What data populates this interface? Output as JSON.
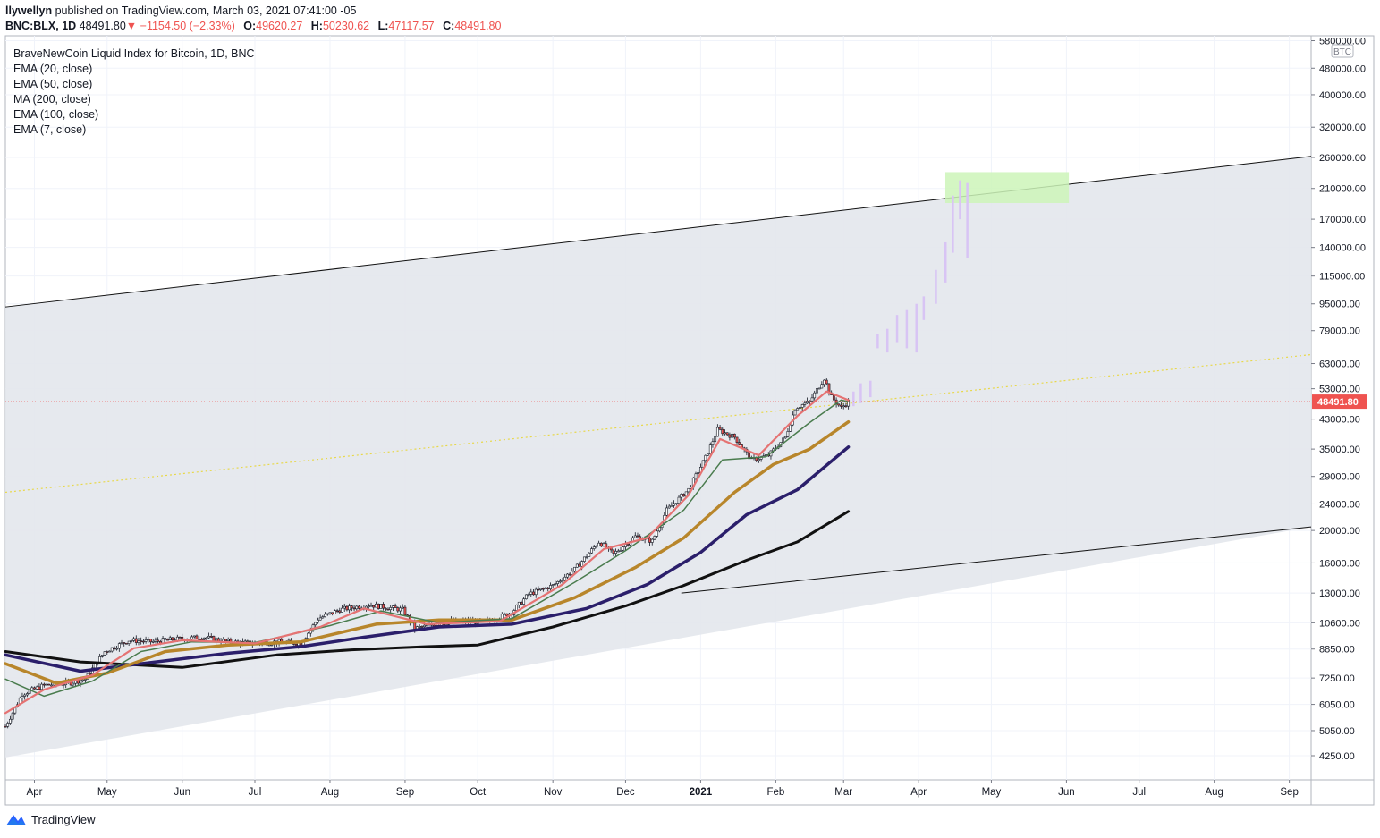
{
  "header": {
    "user": "llywellyn",
    "published": "published on TradingView.com, March 03, 2021 07:41:00 -05",
    "symbol": "BNC:BLX, 1D",
    "last": "48491.80",
    "arrow": "▼",
    "change": "−1154.50 (−2.33%)",
    "o_label": "O:",
    "o": "49620.27",
    "h_label": "H:",
    "h": "50230.62",
    "l_label": "L:",
    "l": "47117.57",
    "c_label": "C:",
    "c": "48491.80"
  },
  "legend": {
    "title": "BraveNewCoin Liquid Index for Bitcoin, 1D, BNC",
    "studies": [
      "EMA (20, close)",
      "EMA (50, close)",
      "MA (200, close)",
      "EMA (100, close)",
      "EMA (7, close)"
    ]
  },
  "footer": {
    "brand": "TradingView"
  },
  "colors": {
    "channel_fill": "#e3e7ec",
    "up": "#ffffff",
    "down": "#ef5350",
    "wick": "#131722",
    "ema7": "#e57373",
    "ema20": "#4a7c4e",
    "ema50": "#b8862b",
    "ema100": "#2b1f6b",
    "ma200": "#111111",
    "projection": "#d8c4f4",
    "target_zone": "#ccf5b8",
    "midline": "#e8d84a",
    "price_line": "#ef5350"
  },
  "chart_data": {
    "type": "candlestick",
    "title": "BraveNewCoin Liquid Index for Bitcoin, 1D, BNC",
    "scale": "log",
    "currency_badge": "BTC",
    "last_price_label": "48491.80",
    "ylim": [
      3600,
      600000
    ],
    "xlim": [
      "2020-03-20",
      "2021-09-10"
    ],
    "y_ticks": [
      "580000.00",
      "480000.00",
      "400000.00",
      "320000.00",
      "260000.00",
      "210000.00",
      "170000.00",
      "140000.00",
      "115000.00",
      "95000.00",
      "79000.00",
      "63000.00",
      "53000.00",
      "43000.00",
      "35000.00",
      "29000.00",
      "24000.00",
      "20000.00",
      "16000.00",
      "13000.00",
      "10600.00",
      "8850.00",
      "7250.00",
      "6050.00",
      "5050.00",
      "4250.00"
    ],
    "x_ticks": [
      {
        "label": "Apr",
        "date": "2020-04-01"
      },
      {
        "label": "May",
        "date": "2020-05-01"
      },
      {
        "label": "Jun",
        "date": "2020-06-01"
      },
      {
        "label": "Jul",
        "date": "2020-07-01"
      },
      {
        "label": "Aug",
        "date": "2020-08-01"
      },
      {
        "label": "Sep",
        "date": "2020-09-01"
      },
      {
        "label": "Oct",
        "date": "2020-10-01"
      },
      {
        "label": "Nov",
        "date": "2020-11-01"
      },
      {
        "label": "Dec",
        "date": "2020-12-01"
      },
      {
        "label": "2021",
        "date": "2021-01-01"
      },
      {
        "label": "Feb",
        "date": "2021-02-01"
      },
      {
        "label": "Mar",
        "date": "2021-03-01"
      },
      {
        "label": "Apr",
        "date": "2021-04-01"
      },
      {
        "label": "May",
        "date": "2021-05-01"
      },
      {
        "label": "Jun",
        "date": "2021-06-01"
      },
      {
        "label": "Jul",
        "date": "2021-07-01"
      },
      {
        "label": "Aug",
        "date": "2021-08-01"
      },
      {
        "label": "Sep",
        "date": "2021-09-01"
      }
    ],
    "price_path": [
      [
        "2020-03-20",
        5200
      ],
      [
        "2020-03-27",
        6500
      ],
      [
        "2020-04-05",
        6900
      ],
      [
        "2020-04-15",
        7000
      ],
      [
        "2020-04-22",
        7200
      ],
      [
        "2020-04-30",
        8700
      ],
      [
        "2020-05-10",
        9400
      ],
      [
        "2020-05-20",
        9300
      ],
      [
        "2020-05-31",
        9500
      ],
      [
        "2020-06-10",
        9600
      ],
      [
        "2020-06-20",
        9300
      ],
      [
        "2020-06-30",
        9200
      ],
      [
        "2020-07-10",
        9300
      ],
      [
        "2020-07-20",
        9200
      ],
      [
        "2020-07-27",
        10900
      ],
      [
        "2020-08-05",
        11600
      ],
      [
        "2020-08-17",
        12000
      ],
      [
        "2020-08-31",
        11600
      ],
      [
        "2020-09-05",
        10200
      ],
      [
        "2020-09-20",
        10700
      ],
      [
        "2020-10-05",
        10700
      ],
      [
        "2020-10-15",
        11400
      ],
      [
        "2020-10-22",
        12900
      ],
      [
        "2020-11-01",
        13700
      ],
      [
        "2020-11-10",
        15300
      ],
      [
        "2020-11-20",
        18500
      ],
      [
        "2020-11-26",
        17000
      ],
      [
        "2020-12-05",
        19200
      ],
      [
        "2020-12-12",
        18600
      ],
      [
        "2020-12-18",
        23000
      ],
      [
        "2020-12-27",
        26500
      ],
      [
        "2021-01-03",
        33000
      ],
      [
        "2021-01-08",
        40000
      ],
      [
        "2021-01-15",
        38000
      ],
      [
        "2021-01-22",
        32500
      ],
      [
        "2021-01-29",
        33500
      ],
      [
        "2021-02-05",
        38000
      ],
      [
        "2021-02-09",
        46500
      ],
      [
        "2021-02-15",
        48500
      ],
      [
        "2021-02-21",
        57000
      ],
      [
        "2021-02-24",
        50000
      ],
      [
        "2021-02-28",
        46500
      ],
      [
        "2021-03-03",
        48491.8
      ]
    ],
    "projection": [
      [
        "2021-03-05",
        47000,
        52000
      ],
      [
        "2021-03-08",
        48000,
        55000
      ],
      [
        "2021-03-12",
        50000,
        56000
      ],
      [
        "2021-03-15",
        70000,
        77000
      ],
      [
        "2021-03-19",
        68000,
        80000
      ],
      [
        "2021-03-23",
        73000,
        88000
      ],
      [
        "2021-03-27",
        70000,
        91000
      ],
      [
        "2021-03-31",
        68000,
        95000
      ],
      [
        "2021-04-03",
        85000,
        100000
      ],
      [
        "2021-04-08",
        95000,
        120000
      ],
      [
        "2021-04-12",
        110000,
        145000
      ],
      [
        "2021-04-15",
        135000,
        200000
      ],
      [
        "2021-04-18",
        170000,
        222000
      ],
      [
        "2021-04-21",
        130000,
        218000
      ]
    ],
    "series": [
      {
        "name": "EMA (7, close)",
        "values": [
          [
            "2020-03-20",
            5700
          ],
          [
            "2020-04-05",
            6700
          ],
          [
            "2020-04-25",
            7400
          ],
          [
            "2020-05-12",
            8900
          ],
          [
            "2020-06-01",
            9400
          ],
          [
            "2020-07-01",
            9200
          ],
          [
            "2020-07-28",
            10300
          ],
          [
            "2020-08-15",
            11700
          ],
          [
            "2020-09-10",
            10500
          ],
          [
            "2020-10-10",
            10700
          ],
          [
            "2020-11-05",
            13800
          ],
          [
            "2020-11-22",
            17600
          ],
          [
            "2020-12-10",
            19000
          ],
          [
            "2020-12-27",
            25500
          ],
          [
            "2021-01-09",
            37500
          ],
          [
            "2021-01-25",
            33500
          ],
          [
            "2021-02-10",
            44000
          ],
          [
            "2021-02-22",
            52000
          ],
          [
            "2021-03-03",
            49000
          ]
        ]
      },
      {
        "name": "EMA (20, close)",
        "values": [
          [
            "2020-03-20",
            7200
          ],
          [
            "2020-04-05",
            6400
          ],
          [
            "2020-04-25",
            7100
          ],
          [
            "2020-05-15",
            8700
          ],
          [
            "2020-06-05",
            9300
          ],
          [
            "2020-07-01",
            9250
          ],
          [
            "2020-08-01",
            10400
          ],
          [
            "2020-08-22",
            11500
          ],
          [
            "2020-09-15",
            10600
          ],
          [
            "2020-10-15",
            10900
          ],
          [
            "2020-11-10",
            14000
          ],
          [
            "2020-12-01",
            17400
          ],
          [
            "2020-12-25",
            23000
          ],
          [
            "2021-01-10",
            32500
          ],
          [
            "2021-01-28",
            33200
          ],
          [
            "2021-02-15",
            42000
          ],
          [
            "2021-02-28",
            49000
          ],
          [
            "2021-03-03",
            48500
          ]
        ]
      },
      {
        "name": "EMA (50, close)",
        "values": [
          [
            "2020-03-20",
            8000
          ],
          [
            "2020-04-10",
            7000
          ],
          [
            "2020-05-01",
            7500
          ],
          [
            "2020-05-25",
            8700
          ],
          [
            "2020-06-20",
            9100
          ],
          [
            "2020-07-20",
            9300
          ],
          [
            "2020-08-20",
            10500
          ],
          [
            "2020-09-15",
            10800
          ],
          [
            "2020-10-15",
            10800
          ],
          [
            "2020-11-10",
            12600
          ],
          [
            "2020-12-05",
            15500
          ],
          [
            "2020-12-25",
            19000
          ],
          [
            "2021-01-15",
            26000
          ],
          [
            "2021-01-31",
            31500
          ],
          [
            "2021-02-15",
            35000
          ],
          [
            "2021-03-03",
            42200
          ]
        ]
      },
      {
        "name": "EMA (100, close)",
        "values": [
          [
            "2020-03-20",
            8500
          ],
          [
            "2020-04-20",
            7600
          ],
          [
            "2020-05-15",
            8000
          ],
          [
            "2020-06-20",
            8600
          ],
          [
            "2020-07-20",
            9000
          ],
          [
            "2020-08-15",
            9600
          ],
          [
            "2020-09-15",
            10300
          ],
          [
            "2020-10-15",
            10500
          ],
          [
            "2020-11-15",
            11700
          ],
          [
            "2020-12-10",
            13800
          ],
          [
            "2021-01-01",
            17200
          ],
          [
            "2021-01-20",
            22300
          ],
          [
            "2021-02-10",
            26500
          ],
          [
            "2021-03-03",
            35500
          ]
        ]
      },
      {
        "name": "MA (200, close)",
        "values": [
          [
            "2020-03-20",
            8700
          ],
          [
            "2020-04-20",
            8100
          ],
          [
            "2020-06-01",
            7800
          ],
          [
            "2020-07-10",
            8500
          ],
          [
            "2020-08-10",
            8800
          ],
          [
            "2020-09-10",
            9000
          ],
          [
            "2020-10-01",
            9100
          ],
          [
            "2020-11-01",
            10300
          ],
          [
            "2020-12-01",
            11900
          ],
          [
            "2020-12-25",
            13700
          ],
          [
            "2021-01-20",
            16300
          ],
          [
            "2021-02-10",
            18500
          ],
          [
            "2021-03-03",
            22800
          ]
        ]
      }
    ],
    "channel": {
      "upper": [
        [
          "2020-03-20",
          93000
        ],
        [
          "2021-09-10",
          262000
        ]
      ],
      "lower": [
        [
          "2020-12-24",
          13000
        ],
        [
          "2021-09-10",
          20500
        ]
      ],
      "lower_start": [
        "2020-03-20",
        4200
      ],
      "mid": [
        [
          "2020-03-20",
          26000
        ],
        [
          "2021-09-10",
          67000
        ]
      ]
    },
    "target_zone": {
      "from": "2021-04-12",
      "to": "2021-06-02",
      "low": 190000,
      "high": 235000
    }
  }
}
